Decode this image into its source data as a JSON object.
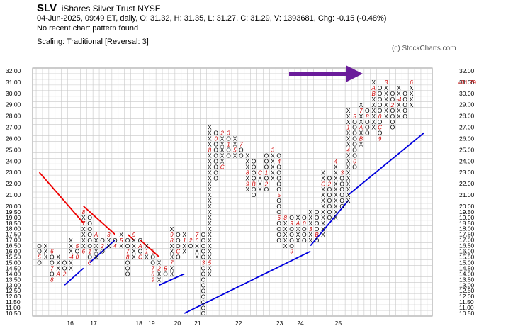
{
  "header": {
    "symbol": "SLV",
    "name": "iShares Silver Trust",
    "exchange": "NYSE",
    "stats": "04-Jun-2025, 09:49 ET, daily, O: 31.32, H: 31.35, L: 31.27, C: 31.29, V: 1393681, Chg: -0.15 (-0.48%)",
    "pattern": "No recent chart pattern found",
    "scaling": "Scaling: Traditional [Reversal: 3]",
    "credit": "(c) StockCharts.com"
  },
  "chart_data": {
    "type": "point-and-figure",
    "box_size": 0.5,
    "reversal": 3,
    "ylim": [
      10.5,
      32.0
    ],
    "price_labels": [
      "32.00",
      "31.00",
      "30.00",
      "29.00",
      "28.00",
      "27.00",
      "26.00",
      "25.00",
      "24.00",
      "23.00",
      "22.00",
      "21.00",
      "20.00",
      "19.50",
      "19.00",
      "18.50",
      "18.00",
      "17.50",
      "17.00",
      "16.50",
      "16.00",
      "15.50",
      "15.00",
      "14.50",
      "14.00",
      "13.50",
      "13.00",
      "12.50",
      "12.00",
      "11.50",
      "11.00",
      "10.50"
    ],
    "last_price_label": "«31.29",
    "x_labels": [
      {
        "text": "16",
        "col": 4.9
      },
      {
        "text": "17",
        "col": 8.6
      },
      {
        "text": "18",
        "col": 15.8
      },
      {
        "text": "19",
        "col": 17.8
      },
      {
        "text": "20",
        "col": 21.9
      },
      {
        "text": "21",
        "col": 25.1
      },
      {
        "text": "22",
        "col": 31.6
      },
      {
        "text": "23",
        "col": 38.1
      },
      {
        "text": "24",
        "col": 41.4
      },
      {
        "text": "25",
        "col": 47.4
      }
    ],
    "columns": [
      {
        "t": "O",
        "top": 16.5,
        "bot": 15.0,
        "m": {
          "15.5": "5"
        }
      },
      {
        "t": "X",
        "top": 16.5,
        "bot": 15.5,
        "m": {}
      },
      {
        "t": "O",
        "top": 16.0,
        "bot": 13.5,
        "m": {
          "16": "6",
          "14.5": "7",
          "13.5": "8"
        }
      },
      {
        "t": "X",
        "top": 15.5,
        "bot": 14.0,
        "m": {
          "14": "A"
        }
      },
      {
        "t": "O",
        "top": 15.0,
        "bot": 14.0,
        "m": {
          "14": "2"
        }
      },
      {
        "t": "X",
        "top": 17.0,
        "bot": 14.5,
        "m": {
          "15.5": "-4"
        }
      },
      {
        "t": "O",
        "top": 16.5,
        "bot": 15.5,
        "m": {
          "16.5": "5",
          "15.5": "0"
        }
      },
      {
        "t": "X",
        "top": 19.5,
        "bot": 16.0,
        "m": {
          "19.5": "8",
          "18.5": "7",
          "16": "6"
        }
      },
      {
        "t": "O",
        "top": 19.0,
        "bot": 15.0,
        "m": {
          "15": "C",
          "16": "1"
        }
      },
      {
        "t": "X",
        "top": 17.5,
        "bot": 15.5,
        "m": {
          "17.5": "A"
        }
      },
      {
        "t": "O",
        "top": 17.0,
        "bot": 16.0,
        "m": {
          "16.5": "2"
        }
      },
      {
        "t": "X",
        "top": 17.5,
        "bot": 16.5,
        "m": {
          "17.5": "3"
        }
      },
      {
        "t": "O",
        "top": 17.0,
        "bot": 16.5,
        "m": {
          "16.5": "4"
        }
      },
      {
        "t": "X",
        "top": 17.5,
        "bot": 16.5,
        "m": {
          "17": "5"
        }
      },
      {
        "t": "O",
        "top": 17.0,
        "bot": 14.0,
        "m": {
          "16": "7",
          "15.5": "8"
        }
      },
      {
        "t": "X",
        "top": 17.5,
        "bot": 15.5,
        "m": {
          "17.5": "9"
        }
      },
      {
        "t": "O",
        "top": 17.0,
        "bot": 15.5,
        "m": {
          "16.5": "A",
          "15.5": "C"
        }
      },
      {
        "t": "X",
        "top": 16.5,
        "bot": 15.5,
        "m": {
          "16": "1"
        }
      },
      {
        "t": "O",
        "top": 16.0,
        "bot": 13.5,
        "m": {
          "16": "6",
          "14.5": "7",
          "14": "8",
          "13.5": "9"
        }
      },
      {
        "t": "X",
        "top": 15.0,
        "bot": 13.5,
        "m": {
          "14.5": "2"
        }
      },
      {
        "t": "O",
        "top": 14.5,
        "bot": 14.0,
        "m": {
          "14.5": "5"
        }
      },
      {
        "t": "X",
        "top": 18.0,
        "bot": 14.0,
        "m": {
          "17.5": "9",
          "17": "8",
          "15": "7"
        }
      },
      {
        "t": "O",
        "top": 17.5,
        "bot": 15.5,
        "m": {
          "16": "C"
        }
      },
      {
        "t": "X",
        "top": 17.5,
        "bot": 16.0,
        "m": {
          "17": "1"
        }
      },
      {
        "t": "O",
        "top": 17.0,
        "bot": 16.5,
        "m": {
          "17": "2"
        }
      },
      {
        "t": "X",
        "top": 17.5,
        "bot": 15.5,
        "m": {
          "17.5": "7",
          "17": "6"
        }
      },
      {
        "t": "O",
        "top": 17.5,
        "bot": 10.5,
        "m": {
          "15": "3"
        }
      },
      {
        "t": "X",
        "top": 27.0,
        "bot": 14.0,
        "m": {
          "25": "8",
          "15": "5"
        }
      },
      {
        "t": "O",
        "top": 26.5,
        "bot": 22.5,
        "m": {
          "26": "0"
        }
      },
      {
        "t": "X",
        "top": 26.5,
        "bot": 23.5,
        "m": {
          "26.5": "2",
          "23.5": "C"
        }
      },
      {
        "t": "O",
        "top": 26.5,
        "bot": 24.5,
        "m": {
          "26.5": "3",
          "25.5": "1"
        }
      },
      {
        "t": "X",
        "top": 26.0,
        "bot": 24.5,
        "m": {
          "25": "5"
        }
      },
      {
        "t": "O",
        "top": 25.5,
        "bot": 24.5,
        "m": {
          "25.5": "7"
        }
      },
      {
        "t": "X",
        "top": 24.5,
        "bot": 21.5,
        "m": {
          "23": "8",
          "22": "9"
        }
      },
      {
        "t": "O",
        "top": 24.0,
        "bot": 21.0,
        "m": {
          "22": "B"
        }
      },
      {
        "t": "X",
        "top": 23.0,
        "bot": 21.5,
        "m": {
          "23": "C"
        }
      },
      {
        "t": "O",
        "top": 24.5,
        "bot": 21.5,
        "m": {
          "23": "1",
          "22": "2"
        }
      },
      {
        "t": "X",
        "top": 25.0,
        "bot": 22.5,
        "m": {
          "25": "3"
        }
      },
      {
        "t": "O",
        "top": 24.5,
        "bot": 17.0,
        "m": {
          "24": "4",
          "21": "5",
          "19": "6"
        }
      },
      {
        "t": "X",
        "top": 19.0,
        "bot": 16.5,
        "m": {
          "19": "8"
        }
      },
      {
        "t": "O",
        "top": 19.0,
        "bot": 16.0,
        "m": {
          "16": "9",
          "18.5": "9"
        }
      },
      {
        "t": "X",
        "top": 19.0,
        "bot": 17.0,
        "m": {
          "18.5": "A"
        }
      },
      {
        "t": "O",
        "top": 19.0,
        "bot": 17.0,
        "m": {
          "18.5": "0"
        }
      },
      {
        "t": "X",
        "top": 19.5,
        "bot": 17.0,
        "m": {
          "18": "3"
        }
      },
      {
        "t": "O",
        "top": 19.5,
        "bot": 17.0,
        "m": {
          "17.5": "B"
        }
      },
      {
        "t": "X",
        "top": 23.0,
        "bot": 17.5,
        "m": {
          "22": "C"
        }
      },
      {
        "t": "O",
        "top": 22.5,
        "bot": 19.0,
        "m": {
          "22": "2"
        }
      },
      {
        "t": "X",
        "top": 24.0,
        "bot": 19.0,
        "m": {
          "24": "4"
        }
      },
      {
        "t": "O",
        "top": 23.0,
        "bot": 20.0,
        "m": {
          "23": "3"
        }
      },
      {
        "t": "X",
        "top": 28.5,
        "bot": 20.5,
        "m": {
          "27": "1",
          "25": "4"
        }
      },
      {
        "t": "O",
        "top": 28.0,
        "bot": 23.5,
        "m": {
          "28": "5",
          "24": "0"
        }
      },
      {
        "t": "X",
        "top": 29.0,
        "bot": 25.5,
        "m": {
          "28.5": "7",
          "27": "A",
          "26": "B"
        }
      },
      {
        "t": "O",
        "top": 28.5,
        "bot": 26.5,
        "m": {
          "28": "8"
        }
      },
      {
        "t": "X",
        "top": 31.0,
        "bot": 27.0,
        "m": {
          "30.5": "A",
          "30": "B"
        }
      },
      {
        "t": "O",
        "top": 30.5,
        "bot": 26.0,
        "m": {
          "28": "0",
          "27": "C",
          "26": "9"
        }
      },
      {
        "t": "X",
        "top": 31.0,
        "bot": 28.0,
        "m": {
          "31": "3"
        }
      },
      {
        "t": "O",
        "top": 30.0,
        "bot": 27.0,
        "m": {
          "29": "2"
        }
      },
      {
        "t": "X",
        "top": 30.5,
        "bot": 28.0,
        "m": {
          "29.5": "-4"
        }
      },
      {
        "t": "O",
        "top": 30.0,
        "bot": 28.0,
        "m": {}
      },
      {
        "t": "X",
        "top": 31.0,
        "bot": 29.0,
        "m": {
          "31": "6"
        }
      }
    ],
    "trendlines": [
      {
        "kind": "resistance",
        "color": "#ee0000",
        "from": [
          0,
          23.0
        ],
        "to": [
          7,
          18.5
        ]
      },
      {
        "kind": "resistance",
        "color": "#ee0000",
        "from": [
          7,
          20.0
        ],
        "to": [
          12,
          17.5
        ]
      },
      {
        "kind": "resistance",
        "color": "#ee0000",
        "from": [
          14,
          17.5
        ],
        "to": [
          15,
          17.0
        ]
      },
      {
        "kind": "resistance",
        "color": "#ee0000",
        "from": [
          16,
          17.0
        ],
        "to": [
          19,
          15.5
        ]
      },
      {
        "kind": "support",
        "color": "#0000dd",
        "from": [
          4,
          13.0
        ],
        "to": [
          7,
          14.5
        ]
      },
      {
        "kind": "support",
        "color": "#0000dd",
        "from": [
          8,
          15.0
        ],
        "to": [
          12,
          17.0
        ]
      },
      {
        "kind": "support",
        "color": "#0000dd",
        "from": [
          19,
          13.0
        ],
        "to": [
          23,
          14.0
        ]
      },
      {
        "kind": "support",
        "color": "#0000dd",
        "from": [
          23,
          10.5
        ],
        "to": [
          43,
          16.0
        ]
      },
      {
        "kind": "support",
        "color": "#0000dd",
        "from": [
          43,
          16.5
        ],
        "to": [
          49,
          20.5
        ]
      },
      {
        "kind": "support",
        "color": "#0000dd",
        "from": [
          49,
          21.0
        ],
        "to": [
          61,
          26.5
        ]
      }
    ],
    "arrow_color": "#6a1b9a",
    "x_color": "#000000",
    "o_color": "#000000",
    "month_marker_color": "#cc0000"
  }
}
